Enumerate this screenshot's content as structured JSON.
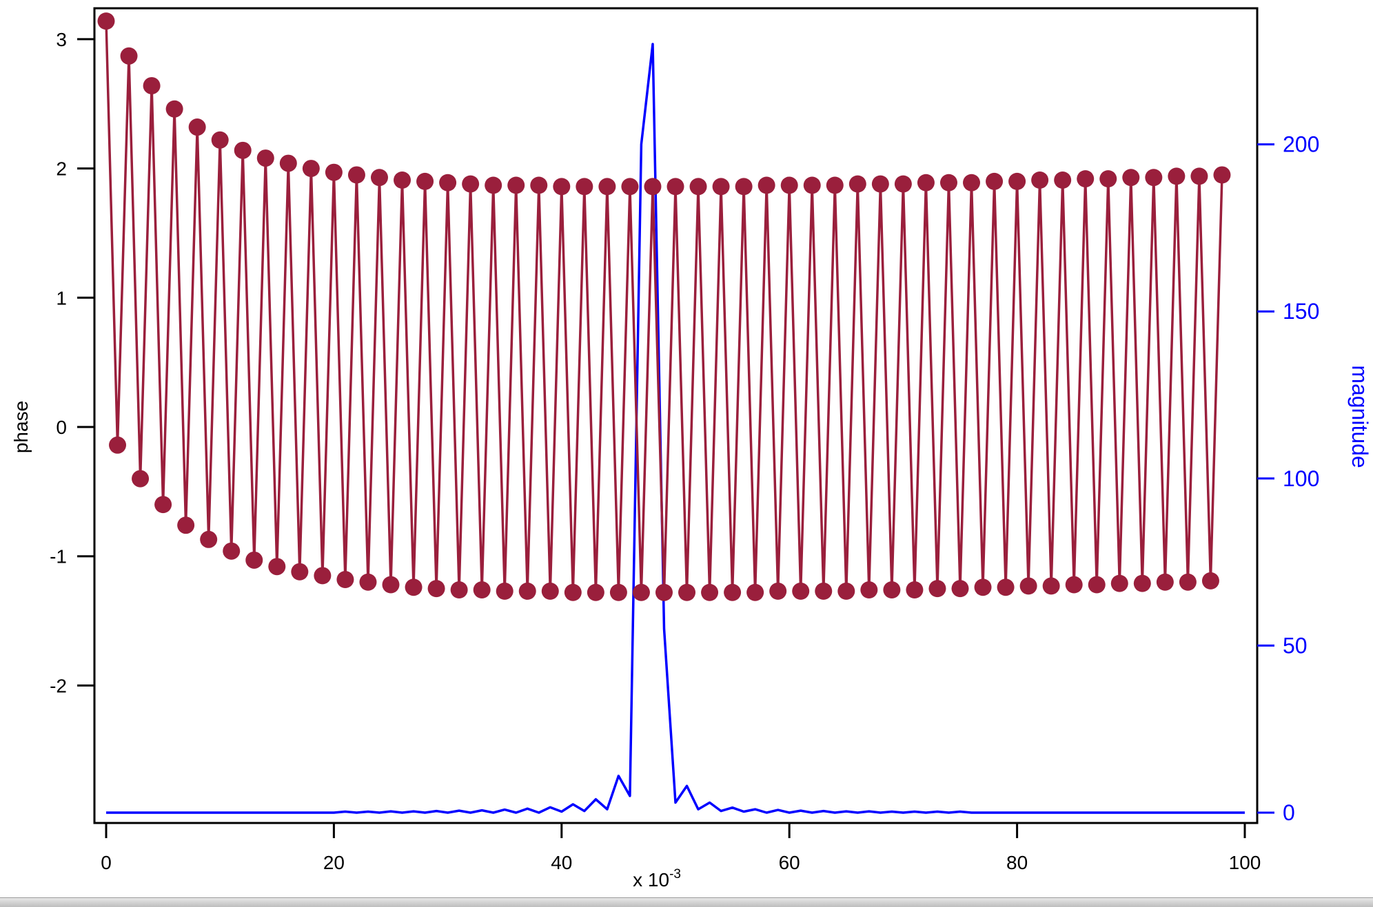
{
  "colors": {
    "phase": "#9a1f3c",
    "magnitude": "#0000ff",
    "axis": "#000000"
  },
  "chart_data": {
    "type": "line",
    "x_range": [
      0,
      0.1
    ],
    "x_tick_values": [
      0,
      0.02,
      0.04,
      0.06,
      0.08,
      0.1
    ],
    "x_tick_labels": [
      "0",
      "20",
      "40",
      "60",
      "80",
      "100"
    ],
    "x_scale_label": "x 10",
    "x_scale_exponent": "-3",
    "left_axis": {
      "label": "phase",
      "range": [
        -3.1,
        3.3
      ],
      "ticks": [
        -2,
        -1,
        0,
        1,
        2,
        3
      ],
      "tick_labels": [
        "-2",
        "-1",
        "0",
        "1",
        "2",
        "3"
      ]
    },
    "right_axis": {
      "label": "magnitude",
      "range": [
        -3,
        240
      ],
      "ticks": [
        0,
        50,
        100,
        150,
        200
      ],
      "tick_labels": [
        "0",
        "50",
        "100",
        "150",
        "200"
      ]
    },
    "grid": false,
    "series": [
      {
        "axis": "left",
        "marker": "circle",
        "color_key": "phase",
        "x_start": 0,
        "x_step": 0.001,
        "values": [
          3.14,
          -0.14,
          2.87,
          -0.4,
          2.64,
          -0.6,
          2.46,
          -0.76,
          2.32,
          -0.87,
          2.22,
          -0.96,
          2.14,
          -1.03,
          2.08,
          -1.08,
          2.04,
          -1.12,
          2.0,
          -1.15,
          1.97,
          -1.18,
          1.95,
          -1.2,
          1.93,
          -1.22,
          1.91,
          -1.24,
          1.9,
          -1.25,
          1.89,
          -1.26,
          1.88,
          -1.26,
          1.87,
          -1.27,
          1.87,
          -1.27,
          1.87,
          -1.27,
          1.86,
          -1.28,
          1.86,
          -1.28,
          1.86,
          -1.28,
          1.86,
          -1.28,
          1.86,
          -1.28,
          1.86,
          -1.28,
          1.86,
          -1.28,
          1.86,
          -1.28,
          1.86,
          -1.28,
          1.87,
          -1.27,
          1.87,
          -1.27,
          1.87,
          -1.27,
          1.87,
          -1.27,
          1.88,
          -1.26,
          1.88,
          -1.26,
          1.88,
          -1.26,
          1.89,
          -1.25,
          1.89,
          -1.25,
          1.89,
          -1.24,
          1.9,
          -1.24,
          1.9,
          -1.23,
          1.91,
          -1.23,
          1.91,
          -1.22,
          1.92,
          -1.22,
          1.92,
          -1.21,
          1.93,
          -1.21,
          1.93,
          -1.2,
          1.94,
          -1.2,
          1.94,
          -1.19,
          1.95
        ]
      },
      {
        "axis": "right",
        "marker": "none",
        "color_key": "magnitude",
        "x_start": 0,
        "x_step": 0.001,
        "values": [
          0,
          0,
          0,
          0,
          0,
          0,
          0,
          0,
          0,
          0,
          0,
          0,
          0,
          0,
          0,
          0,
          0,
          0,
          0,
          0,
          0,
          0.3,
          0,
          0.3,
          0,
          0.4,
          0,
          0.4,
          0,
          0.5,
          0,
          0.6,
          0,
          0.7,
          0,
          0.9,
          0,
          1.2,
          0,
          1.6,
          0.3,
          2.5,
          0.5,
          4,
          1,
          11,
          5,
          200,
          230,
          55,
          3,
          8,
          1,
          3,
          0.5,
          1.5,
          0.3,
          1,
          0,
          0.8,
          0,
          0.6,
          0,
          0.5,
          0,
          0.4,
          0,
          0.4,
          0,
          0.3,
          0,
          0.3,
          0,
          0.3,
          0,
          0.3,
          0,
          0,
          0,
          0,
          0,
          0,
          0,
          0,
          0,
          0,
          0,
          0,
          0,
          0,
          0,
          0,
          0,
          0,
          0,
          0,
          0,
          0,
          0,
          0,
          0
        ]
      }
    ]
  }
}
